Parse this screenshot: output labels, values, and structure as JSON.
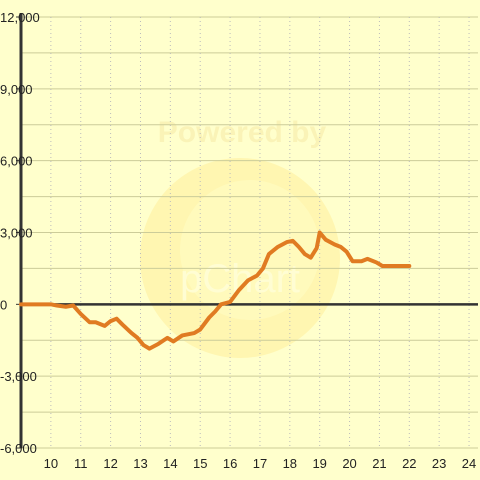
{
  "chart_data": {
    "type": "line",
    "title": "",
    "xlabel": "",
    "ylabel": "",
    "xlim": [
      9,
      24.3
    ],
    "ylim": [
      -6000,
      12000
    ],
    "x_ticks": [
      10,
      11,
      12,
      13,
      14,
      15,
      16,
      17,
      18,
      19,
      20,
      21,
      22,
      23,
      24
    ],
    "y_ticks": [
      -6000,
      -3000,
      0,
      3000,
      6000,
      9000,
      12000
    ],
    "x_tick_labels": [
      "10",
      "11",
      "12",
      "13",
      "14",
      "15",
      "16",
      "17",
      "18",
      "19",
      "20",
      "21",
      "22",
      "23",
      "24"
    ],
    "y_tick_labels": [
      "-6,000",
      "-3,000",
      "0",
      "3,000",
      "6,000",
      "9,000",
      "12,000"
    ],
    "grid": true,
    "series": [
      {
        "color": "#e07b22",
        "points": [
          [
            9.0,
            0
          ],
          [
            10.0,
            0
          ],
          [
            10.2,
            -50
          ],
          [
            10.5,
            -100
          ],
          [
            10.75,
            -50
          ],
          [
            11.0,
            -400
          ],
          [
            11.3,
            -750
          ],
          [
            11.5,
            -750
          ],
          [
            11.8,
            -900
          ],
          [
            12.0,
            -700
          ],
          [
            12.2,
            -600
          ],
          [
            12.4,
            -850
          ],
          [
            12.7,
            -1200
          ],
          [
            12.9,
            -1400
          ],
          [
            13.1,
            -1700
          ],
          [
            13.3,
            -1850
          ],
          [
            13.6,
            -1650
          ],
          [
            13.9,
            -1400
          ],
          [
            14.1,
            -1550
          ],
          [
            14.4,
            -1300
          ],
          [
            14.8,
            -1200
          ],
          [
            15.0,
            -1050
          ],
          [
            15.3,
            -550
          ],
          [
            15.5,
            -300
          ],
          [
            15.7,
            0
          ],
          [
            16.0,
            100
          ],
          [
            16.3,
            600
          ],
          [
            16.6,
            1000
          ],
          [
            16.9,
            1200
          ],
          [
            17.1,
            1500
          ],
          [
            17.3,
            2100
          ],
          [
            17.6,
            2400
          ],
          [
            17.9,
            2600
          ],
          [
            18.1,
            2650
          ],
          [
            18.3,
            2400
          ],
          [
            18.5,
            2100
          ],
          [
            18.7,
            1950
          ],
          [
            18.9,
            2350
          ],
          [
            19.0,
            3000
          ],
          [
            19.2,
            2700
          ],
          [
            19.5,
            2500
          ],
          [
            19.7,
            2400
          ],
          [
            19.9,
            2200
          ],
          [
            20.1,
            1800
          ],
          [
            20.4,
            1800
          ],
          [
            20.6,
            1900
          ],
          [
            20.9,
            1750
          ],
          [
            21.1,
            1600
          ],
          [
            21.5,
            1600
          ],
          [
            22.0,
            1600
          ]
        ]
      }
    ],
    "axis_color": "#333333",
    "grid_major_color": "#cccc99",
    "grid_minor_color": "#bbbbbb",
    "background": "#ffffcc"
  },
  "watermark": {
    "text_top": "Powered by",
    "text_bottom": "pChart"
  }
}
